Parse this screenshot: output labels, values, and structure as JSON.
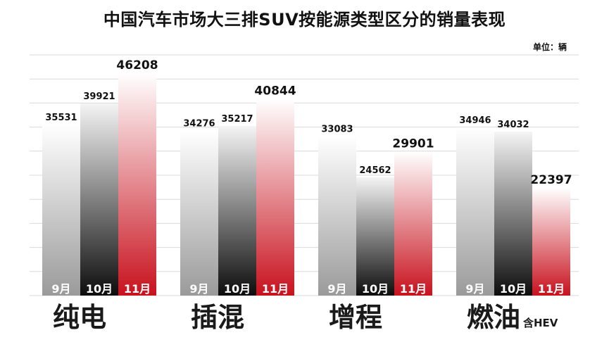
{
  "title": "中国汽车市场大三排SUV按能源类型区分的销量表现",
  "unit_label": "单位：辆",
  "colors": {
    "gray": "#b5b5b5",
    "black": "#141414",
    "red": "#c8121e",
    "grid": "#d9d9d9"
  },
  "chart_data": {
    "type": "bar",
    "title": "中国汽车市场大三排SUV按能源类型区分的销量表现",
    "unit": "单位：辆",
    "categories": [
      "纯电",
      "插混",
      "增程",
      "燃油"
    ],
    "category_note": {
      "燃油": "含HEV"
    },
    "series": [
      {
        "name": "9月",
        "values": [
          35531,
          34276,
          33083,
          34946
        ]
      },
      {
        "name": "10月",
        "values": [
          39921,
          35217,
          24562,
          34032
        ]
      },
      {
        "name": "11月",
        "values": [
          46208,
          40844,
          29901,
          22397
        ]
      }
    ],
    "ylim": [
      0,
      50000
    ],
    "grid": true
  }
}
